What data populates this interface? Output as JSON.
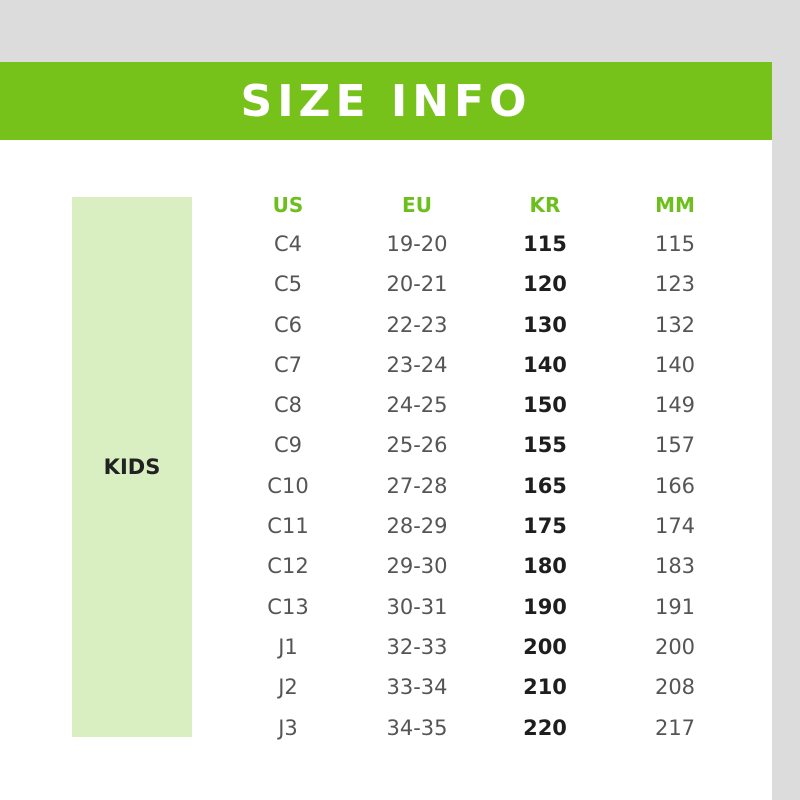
{
  "title": "SIZE INFO",
  "category": "KIDS",
  "colors": {
    "brand_green": "#76c11a",
    "header_green": "#6cbf1c",
    "category_bg": "#d9efc2"
  },
  "columns": [
    "US",
    "EU",
    "KR",
    "MM"
  ],
  "rows": [
    [
      "C4",
      "19-20",
      "115",
      "115"
    ],
    [
      "C5",
      "20-21",
      "120",
      "123"
    ],
    [
      "C6",
      "22-23",
      "130",
      "132"
    ],
    [
      "C7",
      "23-24",
      "140",
      "140"
    ],
    [
      "C8",
      "24-25",
      "150",
      "149"
    ],
    [
      "C9",
      "25-26",
      "155",
      "157"
    ],
    [
      "C10",
      "27-28",
      "165",
      "166"
    ],
    [
      "C11",
      "28-29",
      "175",
      "174"
    ],
    [
      "C12",
      "29-30",
      "180",
      "183"
    ],
    [
      "C13",
      "30-31",
      "190",
      "191"
    ],
    [
      "J1",
      "32-33",
      "200",
      "200"
    ],
    [
      "J2",
      "33-34",
      "210",
      "208"
    ],
    [
      "J3",
      "34-35",
      "220",
      "217"
    ]
  ]
}
